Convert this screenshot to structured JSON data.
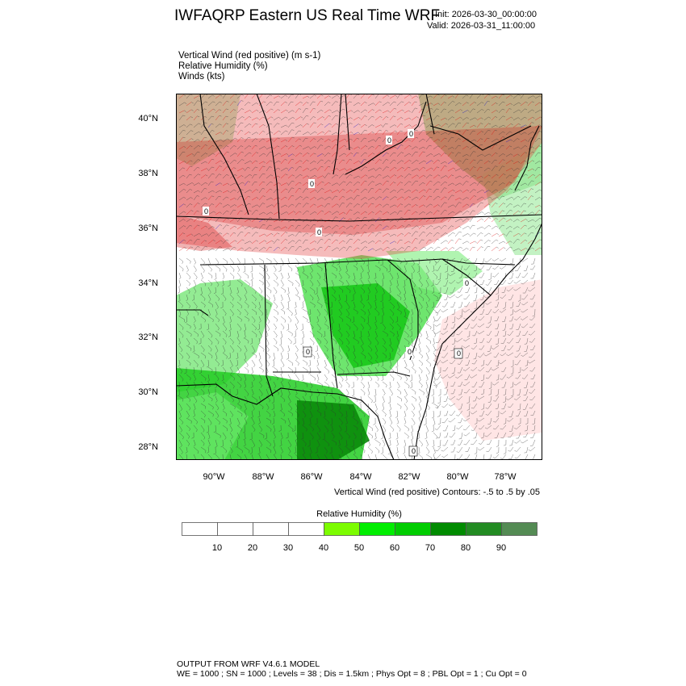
{
  "header": {
    "title": "IWFAQRP Eastern US Real Time WRF",
    "init": "Init: 2026-03-30_00:00:00",
    "valid": "Valid: 2026-03-31_11:00:00"
  },
  "fields": [
    "Vertical Wind (red positive)   (m s-1)",
    "Relative Humidity   (%)",
    "Winds   (kts)"
  ],
  "map": {
    "lat_labels": [
      "40°N",
      "38°N",
      "36°N",
      "34°N",
      "32°N",
      "30°N",
      "28°N"
    ],
    "lon_labels": [
      "90°W",
      "88°W",
      "86°W",
      "84°W",
      "82°W",
      "80°W",
      "78°W"
    ],
    "contour_labels": [
      "0",
      "0",
      "0",
      "0",
      "0",
      "0",
      "0",
      "0",
      "0",
      "0"
    ],
    "colors": {
      "vertical_wind_positive": "#dd0000",
      "vertical_wind_negative": "#0000cc",
      "barbs": "#222222",
      "borders": "#000000"
    }
  },
  "contours_note": "Vertical Wind (red positive) Contours: -.5 to .5 by .05",
  "colorbar": {
    "title": "Relative Humidity  (%)",
    "labels": [
      "10",
      "20",
      "30",
      "40",
      "50",
      "60",
      "70",
      "80",
      "90"
    ],
    "colors": [
      "#ffffff",
      "#ffffff",
      "#ffffff",
      "#ffffff",
      "#7cfc00",
      "#00ee00",
      "#00cd00",
      "#008b00",
      "#228b22",
      "#548b54"
    ]
  },
  "footer": {
    "line1": "OUTPUT FROM WRF V4.6.1 MODEL",
    "line2": "WE = 1000 ; SN = 1000 ; Levels = 38 ; Dis = 1.5km ; Phys Opt = 8 ; PBL Opt = 1 ; Cu Opt = 0"
  }
}
